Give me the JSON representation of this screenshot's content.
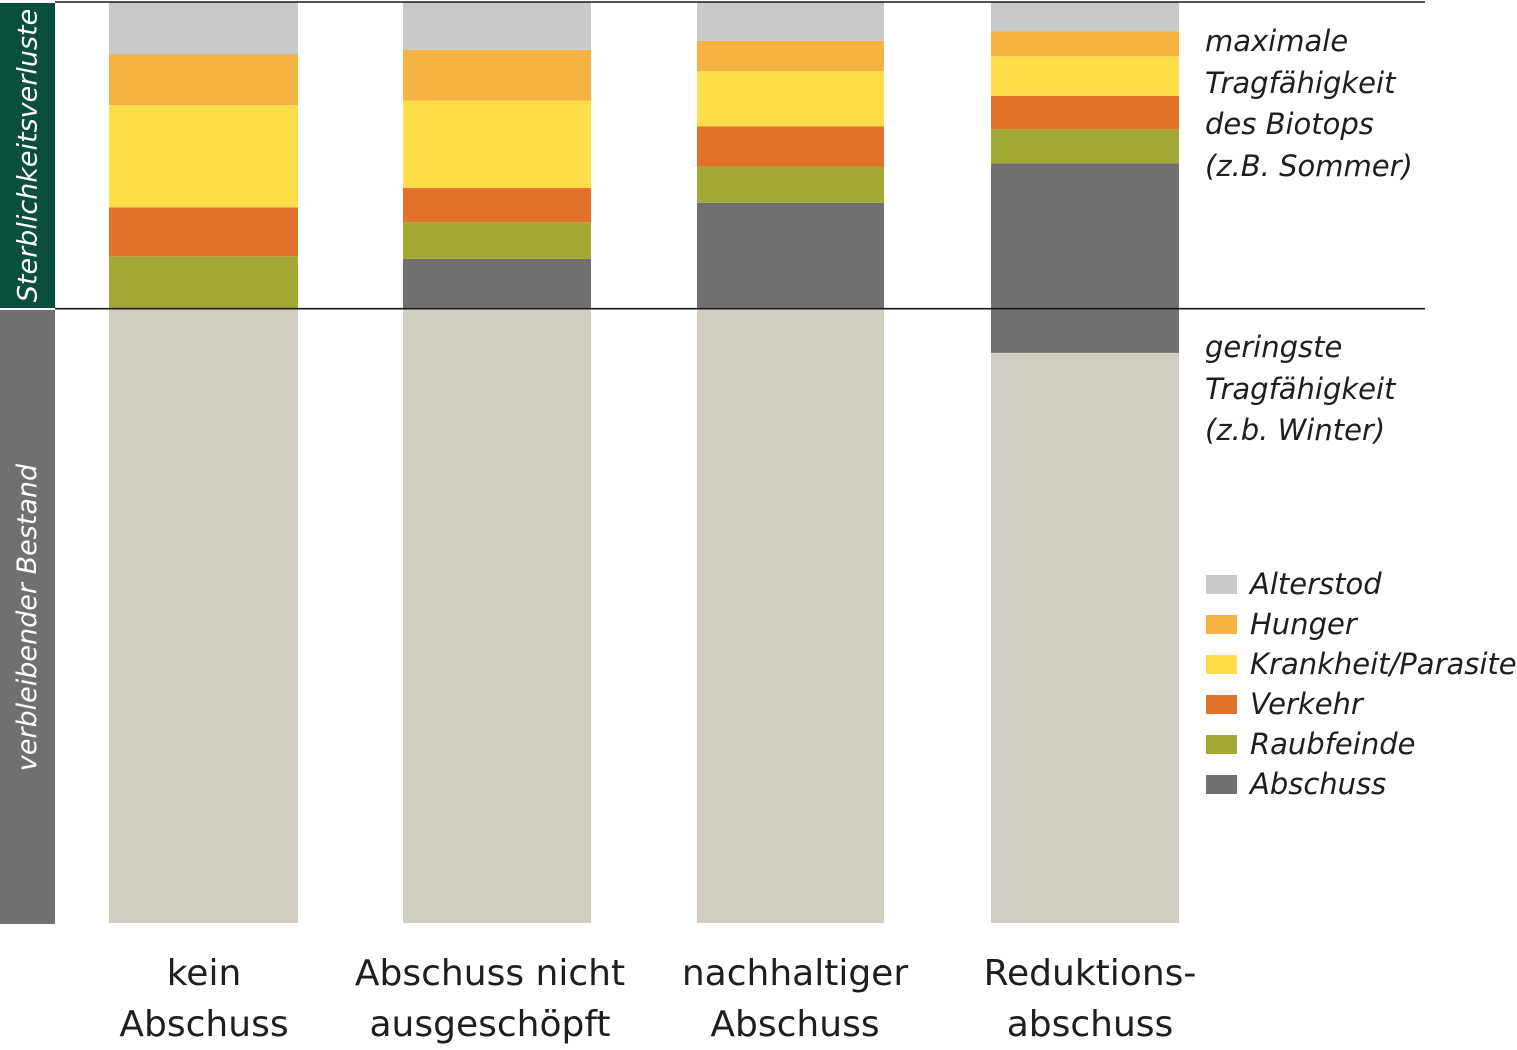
{
  "chart_data": {
    "type": "bar",
    "stacked": true,
    "categories": [
      [
        "kein",
        "Abschuss"
      ],
      [
        "Abschuss nicht",
        "ausgeschöpft"
      ],
      [
        "nachhaltiger",
        "Abschuss"
      ],
      [
        "Reduktions-",
        "abschuss"
      ]
    ],
    "y_axis_labels": {
      "upper": "Sterblichkeitsverluste",
      "lower": "verbleibender Bestand"
    },
    "ylim": [
      0,
      100
    ],
    "grid": false,
    "legend_position": "right",
    "reference_lines": [
      {
        "value": 100,
        "label_lines": [
          "maximale",
          "Tragfähigkeit",
          "des Biotops",
          "(z.B. Sommer)"
        ]
      },
      {
        "value": 66.7,
        "label_lines": [
          "geringste",
          "Tragfähigkeit",
          "(z.b. Winter)"
        ]
      }
    ],
    "series": [
      {
        "name": "verbleibender Bestand",
        "color": "#d2cfc2",
        "values": [
          66.7,
          66.7,
          66.7,
          61.9
        ],
        "in_legend": false
      },
      {
        "name": "Abschuss",
        "color": "#707070",
        "values": [
          0,
          5.4,
          11.5,
          20.6
        ]
      },
      {
        "name": "Raubfeinde",
        "color": "#a4a936",
        "values": [
          5.7,
          4.0,
          3.9,
          3.7
        ]
      },
      {
        "name": "Verkehr",
        "color": "#e27229",
        "values": [
          5.3,
          3.7,
          4.4,
          3.6
        ]
      },
      {
        "name": "Krankheit/Parasiten",
        "color": "#fddd48",
        "values": [
          11.1,
          9.5,
          6.0,
          4.3
        ]
      },
      {
        "name": "Hunger",
        "color": "#f6b143",
        "values": [
          5.5,
          5.5,
          3.3,
          2.7
        ]
      },
      {
        "name": "Alterstod",
        "color": "#c8cac8",
        "values": [
          5.7,
          5.2,
          4.2,
          3.2
        ]
      }
    ],
    "legend_order": [
      "Alterstod",
      "Hunger",
      "Krankheit/Parasiten",
      "Verkehr",
      "Raubfeinde",
      "Abschuss"
    ]
  },
  "colors": {
    "band_top": "#0a4e3e",
    "band_bottom": "#707070",
    "reference_line": "#1a1a1a"
  }
}
